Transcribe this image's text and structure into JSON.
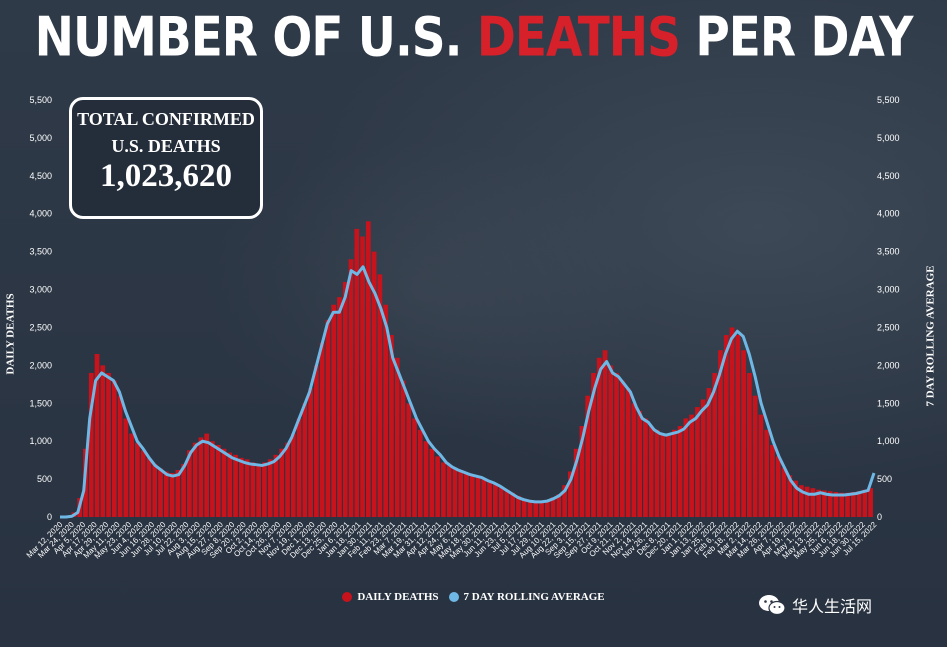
{
  "title": {
    "part1": "NUMBER OF U.S. ",
    "highlight": "DEATHS",
    "part2": " PER DAY"
  },
  "total_box": {
    "line1": "TOTAL CONFIRMED",
    "line2": "U.S. DEATHS",
    "value": "1,023,620"
  },
  "watermark": "华人生活网",
  "colors": {
    "daily": "#c8121c",
    "rolling": "#6fb8e6",
    "background": "#2b3542",
    "title_highlight": "#d6212a"
  },
  "chart_data": {
    "type": "bar",
    "y_left_label": "DAILY DEATHS",
    "y_right_label": "7 DAY ROLLING AVERAGE",
    "ylim": [
      0,
      5500
    ],
    "yticks": [
      0,
      500,
      1000,
      1500,
      2000,
      2500,
      3000,
      3500,
      4000,
      4500,
      5000,
      5500
    ],
    "ytick_labels": [
      "0",
      "500",
      "1,000",
      "1,500",
      "2,000",
      "2,500",
      "3,000",
      "3,500",
      "4,000",
      "4,500",
      "5,000",
      "5,500"
    ],
    "x_range": [
      "2020-03-12",
      "2022-07-15"
    ],
    "x_tick_labels": [
      "Mar 12, 2020",
      "Mar 24, 2020",
      "Apr 5, 2020",
      "Apr 17, 2020",
      "Apr 29, 2020",
      "May 11, 2020",
      "May 23, 2020",
      "Jun 4, 2020",
      "Jun 16, 2020",
      "Jun 28, 2020",
      "Jul 10, 2020",
      "Jul 22, 2020",
      "Aug 3, 2020",
      "Aug 15, 2020",
      "Aug 27, 2020",
      "Sep 8, 2020",
      "Sep 20, 2020",
      "Oct 2, 2020",
      "Oct 14, 2020",
      "Oct 26, 2020",
      "Nov 7, 2020",
      "Nov 19, 2020",
      "Dec 1, 2020",
      "Dec 13, 2020",
      "Dec 25, 2020",
      "Jan 6, 2021",
      "Jan 18, 2021",
      "Jan 30, 2021",
      "Feb 11, 2021",
      "Feb 23, 2021",
      "Mar 7, 2021",
      "Mar 19, 2021",
      "Mar 31, 2021",
      "Apr 12, 2021",
      "Apr 24, 2021",
      "May 6, 2021",
      "May 18, 2021",
      "May 30, 2021",
      "Jun 11, 2021",
      "Jun 23, 2021",
      "Jul 5, 2021",
      "Jul 17, 2021",
      "Jul 29, 2021",
      "Aug 10, 2021",
      "Aug 22, 2021",
      "Sep 3, 2021",
      "Sep 15, 2021",
      "Sep 27, 2021",
      "Oct 9, 2021",
      "Oct 21, 2021",
      "Nov 2, 2021",
      "Nov 14, 2021",
      "Nov 26, 2021",
      "Dec 8, 2021",
      "Dec 20, 2021",
      "Jan 1, 2022",
      "Jan 13, 2022",
      "Jan 25, 2022",
      "Feb 6, 2022",
      "Feb 18, 2022",
      "Mar 2, 2022",
      "Mar 14, 2022",
      "Mar 26, 2022",
      "Apr 7, 2022",
      "Apr 19, 2022",
      "May 1, 2022",
      "May 13, 2022",
      "May 25, 2022",
      "Jun 6, 2022",
      "Jun 18, 2022",
      "Jun 30, 2022",
      "Jul 15, 2022"
    ],
    "series": [
      {
        "name": "DAILY DEATHS",
        "kind": "bar",
        "values": [
          2,
          20,
          60,
          250,
          900,
          1900,
          2150,
          2000,
          1900,
          1800,
          1600,
          1300,
          1100,
          980,
          880,
          780,
          700,
          640,
          600,
          580,
          620,
          700,
          880,
          980,
          1050,
          1100,
          1000,
          950,
          900,
          850,
          820,
          780,
          760,
          720,
          700,
          720,
          760,
          820,
          900,
          980,
          1100,
          1300,
          1500,
          1700,
          2000,
          2300,
          2600,
          2800,
          2900,
          3100,
          3400,
          3800,
          3700,
          3900,
          3500,
          3200,
          2800,
          2400,
          2100,
          1800,
          1500,
          1300,
          1150,
          1000,
          900,
          800,
          720,
          680,
          650,
          620,
          580,
          560,
          520,
          500,
          480,
          440,
          400,
          360,
          320,
          280,
          240,
          220,
          200,
          200,
          220,
          260,
          300,
          420,
          600,
          900,
          1200,
          1600,
          1900,
          2100,
          2200,
          2000,
          1900,
          1800,
          1700,
          1500,
          1400,
          1300,
          1200,
          1150,
          1100,
          1100,
          1150,
          1200,
          1300,
          1350,
          1450,
          1550,
          1700,
          1900,
          2200,
          2400,
          2500,
          2400,
          2200,
          1900,
          1600,
          1350,
          1150,
          950,
          800,
          650,
          550,
          480,
          420,
          400,
          380,
          360,
          350,
          340,
          330,
          320,
          320,
          330,
          340,
          360,
          380
        ]
      },
      {
        "name": "7 DAY ROLLING AVERAGE",
        "kind": "line",
        "values": [
          0,
          0,
          10,
          60,
          350,
          1300,
          1800,
          1900,
          1850,
          1800,
          1650,
          1400,
          1200,
          1000,
          900,
          780,
          680,
          620,
          560,
          540,
          560,
          680,
          850,
          950,
          1000,
          980,
          930,
          880,
          830,
          780,
          750,
          720,
          700,
          690,
          680,
          700,
          730,
          800,
          900,
          1050,
          1250,
          1450,
          1650,
          1950,
          2250,
          2550,
          2700,
          2700,
          2900,
          3250,
          3200,
          3300,
          3100,
          2950,
          2750,
          2500,
          2100,
          1900,
          1700,
          1500,
          1300,
          1150,
          1000,
          900,
          820,
          720,
          660,
          620,
          590,
          560,
          540,
          520,
          480,
          450,
          410,
          360,
          310,
          260,
          230,
          210,
          200,
          200,
          210,
          240,
          280,
          350,
          500,
          750,
          1050,
          1400,
          1700,
          1950,
          2050,
          1900,
          1850,
          1750,
          1650,
          1450,
          1300,
          1250,
          1150,
          1100,
          1080,
          1100,
          1120,
          1160,
          1250,
          1300,
          1400,
          1480,
          1650,
          1880,
          2150,
          2350,
          2450,
          2380,
          2150,
          1850,
          1500,
          1250,
          1000,
          800,
          640,
          480,
          380,
          330,
          300,
          300,
          320,
          300,
          290,
          290,
          290,
          300,
          310,
          330,
          350,
          580
        ]
      }
    ],
    "legend_position": "bottom-center",
    "grid": false
  }
}
